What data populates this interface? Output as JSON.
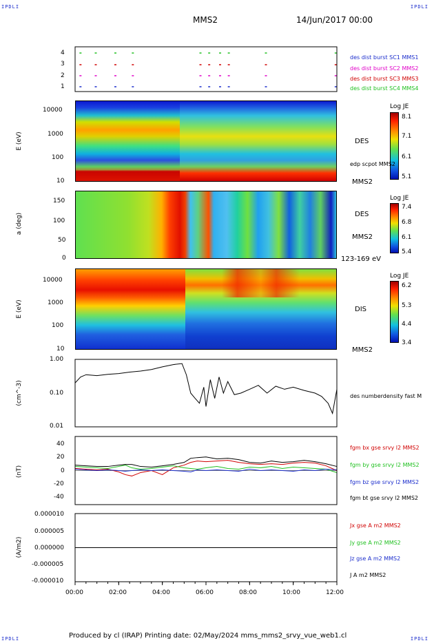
{
  "header": {
    "corner_left": "IPDLI",
    "corner_right": "IPDLI",
    "spacecraft": "MMS2",
    "datetime": "14/Jun/2017 00:00",
    "corner_bottom_left": "IPDLI",
    "corner_bottom_right": "IPDLI"
  },
  "footer": {
    "text": "Produced by cl (IRAP)   Printing date: 02/May/2024   mms_mms2_srvy_vue_web1.cl"
  },
  "time_axis": {
    "ticks": [
      "00:00",
      "02:00",
      "04:00",
      "06:00",
      "08:00",
      "10:00",
      "12:00"
    ]
  },
  "colors": {
    "sc1": "#1a2ccc",
    "sc2": "#e000c8",
    "sc3": "#d00000",
    "sc4": "#20c020",
    "bx": "#d00000",
    "by": "#20c020",
    "bz": "#1a2ccc",
    "bt": "#000000"
  },
  "chart_data": [
    {
      "type": "scatter",
      "panel": "burst",
      "yticks": [
        "4",
        "3",
        "2",
        "1"
      ],
      "legend": [
        {
          "name": "des dist burst SC1 MMS1",
          "color": "#1a2ccc"
        },
        {
          "name": "des dist burst SC2 MMS2",
          "color": "#e000c8"
        },
        {
          "name": "des dist burst SC3 MMS3",
          "color": "#d00000"
        },
        {
          "name": "des dist burst SC4 MMS4",
          "color": "#20c020"
        }
      ],
      "burst_times_hours": [
        0.2,
        0.9,
        1.8,
        2.6,
        5.7,
        6.1,
        6.6,
        7.0,
        8.7,
        11.9
      ]
    },
    {
      "type": "heatmap",
      "panel": "des_energy",
      "ylabel": "E (eV)",
      "yticks": [
        "10000",
        "1000",
        "100",
        "10"
      ],
      "instrument": "DES",
      "spacecraft": "MMS2",
      "overlay_label": "edp scpot MMS2",
      "colorbar": {
        "title": "Log JE",
        "ticks": [
          "8.1",
          "7.1",
          "6.1",
          "5.1"
        ]
      }
    },
    {
      "type": "heatmap",
      "panel": "des_pitch",
      "ylabel": "a (deg)",
      "yticks": [
        "150",
        "100",
        "50",
        "0"
      ],
      "instrument": "DES",
      "spacecraft": "MMS2",
      "energy_range": "123-169 eV",
      "colorbar": {
        "title": "Log JE",
        "ticks": [
          "7.4",
          "6.8",
          "6.1",
          "5.4"
        ]
      }
    },
    {
      "type": "heatmap",
      "panel": "dis_energy",
      "ylabel": "E (eV)",
      "yticks": [
        "10000",
        "1000",
        "100",
        "10"
      ],
      "instrument": "DIS",
      "spacecraft": "MMS2",
      "colorbar": {
        "title": "Log JE",
        "ticks": [
          "6.2",
          "5.3",
          "4.4",
          "3.4"
        ]
      }
    },
    {
      "type": "line",
      "panel": "density",
      "ylabel": "(cm^-3)",
      "yticks": [
        "1.00",
        "0.10",
        "0.01"
      ],
      "ylim": [
        0.01,
        1.0
      ],
      "scale": "log",
      "series": [
        {
          "name": "des numberdensity fast M",
          "x": [
            0.0,
            0.25,
            0.5,
            1.0,
            1.5,
            2.0,
            2.5,
            3.0,
            3.5,
            4.0,
            4.5,
            4.9,
            5.1,
            5.3,
            5.5,
            5.7,
            5.9,
            6.0,
            6.2,
            6.4,
            6.6,
            6.8,
            7.0,
            7.3,
            7.6,
            8.0,
            8.4,
            8.8,
            9.2,
            9.6,
            10.0,
            10.5,
            11.0,
            11.3,
            11.6,
            11.8,
            12.0
          ],
          "values": [
            0.2,
            0.3,
            0.35,
            0.33,
            0.36,
            0.38,
            0.42,
            0.45,
            0.5,
            0.6,
            0.7,
            0.75,
            0.35,
            0.1,
            0.07,
            0.05,
            0.15,
            0.04,
            0.25,
            0.07,
            0.3,
            0.1,
            0.22,
            0.09,
            0.1,
            0.13,
            0.17,
            0.1,
            0.16,
            0.13,
            0.15,
            0.12,
            0.1,
            0.08,
            0.05,
            0.025,
            0.13
          ]
        }
      ]
    },
    {
      "type": "line",
      "panel": "magnetic_field",
      "ylabel": "(nT)",
      "yticks": [
        "40",
        "20",
        "0",
        "-20",
        "-40"
      ],
      "ylim": [
        -50,
        50
      ],
      "series": [
        {
          "name": "fgm bx gse srvy l2 MMS2",
          "color": "#d00000",
          "x": [
            0.0,
            0.5,
            1.0,
            1.5,
            2.0,
            2.3,
            2.6,
            3.0,
            3.5,
            4.0,
            4.5,
            5.0,
            5.3,
            5.6,
            6.0,
            6.5,
            7.0,
            7.5,
            8.0,
            8.5,
            9.0,
            9.5,
            10.0,
            10.5,
            11.0,
            11.5,
            12.0
          ],
          "values": [
            3,
            2,
            1,
            2,
            -2,
            -6,
            -8,
            -3,
            0,
            -6,
            4,
            8,
            12,
            14,
            13,
            14,
            15,
            12,
            10,
            9,
            10,
            9,
            11,
            12,
            11,
            7,
            0
          ]
        },
        {
          "name": "fgm by gse srvy l2 MMS2",
          "color": "#20c020",
          "x": [
            0.0,
            0.5,
            1.0,
            1.5,
            2.0,
            2.3,
            2.6,
            3.0,
            3.5,
            4.0,
            4.5,
            5.0,
            5.3,
            5.6,
            6.0,
            6.5,
            7.0,
            7.5,
            8.0,
            8.5,
            9.0,
            9.5,
            10.0,
            10.5,
            11.0,
            11.5,
            12.0
          ],
          "values": [
            6,
            5,
            4,
            3,
            6,
            8,
            4,
            2,
            3,
            5,
            7,
            4,
            3,
            2,
            4,
            6,
            3,
            2,
            5,
            4,
            6,
            3,
            5,
            4,
            3,
            2,
            -3
          ]
        },
        {
          "name": "fgm bz gse srvy l2 MMS2",
          "color": "#1a2ccc",
          "x": [
            0.0,
            0.5,
            1.0,
            1.5,
            2.0,
            2.3,
            2.6,
            3.0,
            3.5,
            4.0,
            4.5,
            5.0,
            5.3,
            5.6,
            6.0,
            6.5,
            7.0,
            7.5,
            8.0,
            8.5,
            9.0,
            9.5,
            10.0,
            10.5,
            11.0,
            11.5,
            12.0
          ],
          "values": [
            2,
            1,
            0,
            1,
            0,
            -1,
            0,
            1,
            0,
            1,
            0,
            -1,
            -2,
            1,
            0,
            1,
            0,
            -1,
            2,
            0,
            1,
            0,
            -1,
            1,
            0,
            2,
            1
          ]
        },
        {
          "name": "fgm bt gse srvy l2 MMS2",
          "color": "#000000",
          "x": [
            0.0,
            0.5,
            1.0,
            1.5,
            2.0,
            2.3,
            2.6,
            3.0,
            3.5,
            4.0,
            4.5,
            5.0,
            5.3,
            5.6,
            6.0,
            6.5,
            7.0,
            7.5,
            8.0,
            8.5,
            9.0,
            9.5,
            10.0,
            10.5,
            11.0,
            11.5,
            12.0
          ],
          "values": [
            8,
            7,
            6,
            6,
            8,
            9,
            9,
            6,
            5,
            7,
            9,
            12,
            18,
            19,
            20,
            17,
            18,
            16,
            12,
            11,
            14,
            12,
            13,
            15,
            13,
            10,
            6
          ]
        }
      ]
    },
    {
      "type": "line",
      "panel": "current_density",
      "ylabel": "(A/m2)",
      "yticks": [
        "0.000010",
        "0.000005",
        "0.000000",
        "-0.000005",
        "-0.000010"
      ],
      "ylim": [
        -1e-05,
        1e-05
      ],
      "series": [
        {
          "name": "Jx gse A m2 MMS2",
          "color": "#d00000",
          "x": [
            0,
            12
          ],
          "values": [
            0,
            0
          ]
        },
        {
          "name": "Jy gse A m2 MMS2",
          "color": "#20c020",
          "x": [
            0,
            12
          ],
          "values": [
            0,
            0
          ]
        },
        {
          "name": "Jz gse A m2 MMS2",
          "color": "#1a2ccc",
          "x": [
            0,
            12
          ],
          "values": [
            0,
            0
          ]
        },
        {
          "name": "J A m2 MMS2",
          "color": "#000000",
          "x": [
            0,
            12
          ],
          "values": [
            0,
            0
          ]
        }
      ]
    }
  ]
}
